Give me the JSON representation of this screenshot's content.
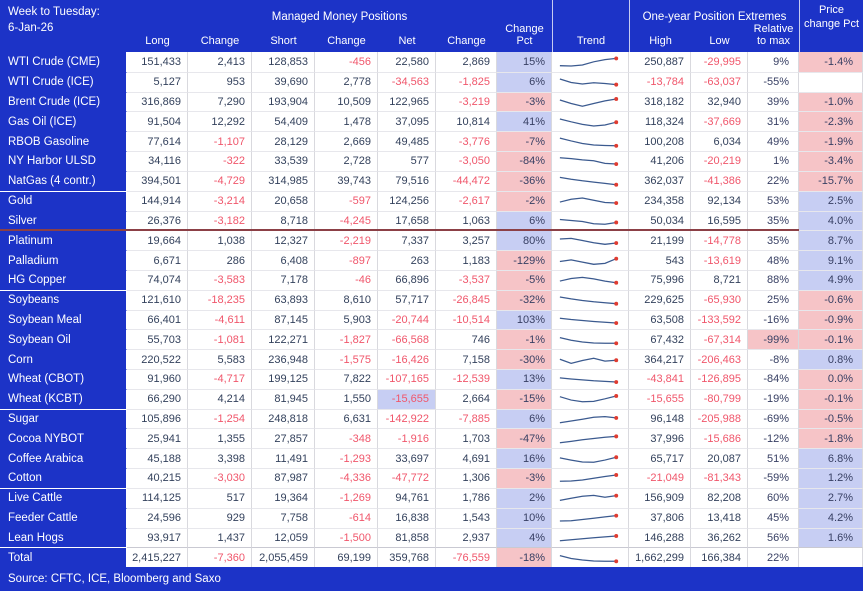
{
  "header": {
    "week_label": "Week to Tuesday:",
    "date": "6-Jan-26",
    "group1": "Managed Money Positions",
    "group2": "One-year Position Extremes",
    "price_col": "Price change Pct",
    "columns": [
      "Long",
      "Change",
      "Short",
      "Change",
      "Net",
      "Change",
      "Change Pct",
      "Trend",
      "High",
      "Low",
      "Relative to max"
    ]
  },
  "footer": {
    "source": "Source: CFTC, ICE, Bloomberg and Saxo"
  },
  "colors": {
    "accent_blue": "#1c33c7",
    "positive_text": "#33415c",
    "negative_text": "#f0566b",
    "highlight_blue": "#c7cef3",
    "highlight_pink": "#f6c4c7",
    "separator_maroon": "#8c4046",
    "sparkline_line": "#3b5a8f",
    "sparkline_dot": "#e03c31"
  },
  "chart_data": {
    "type": "table",
    "title": "Managed Money Positions - Week to Tuesday 6-Jan-26",
    "columns": [
      "Commodity",
      "Long",
      "Long Change",
      "Short",
      "Short Change",
      "Net",
      "Net Change",
      "Change Pct",
      "Trend",
      "High",
      "Low",
      "Relative to max",
      "Price change Pct"
    ],
    "rows": [
      {
        "label": "WTI Crude (CME)",
        "cells": [
          "151,433",
          "2,413",
          "128,853",
          "-456",
          "22,580",
          "2,869"
        ],
        "chg_pct": "15%",
        "trend": [
          0.25,
          0.22,
          0.3,
          0.55,
          0.72,
          0.82
        ],
        "high": "250,887",
        "low": "-29,995",
        "rel": "9%",
        "price": "-1.4%"
      },
      {
        "label": "WTI Crude (ICE)",
        "cells": [
          "5,127",
          "953",
          "39,690",
          "2,778",
          "-34,563",
          "-1,825"
        ],
        "chg_pct": "6%",
        "trend": [
          0.78,
          0.5,
          0.38,
          0.48,
          0.42,
          0.33
        ],
        "high": "-13,784",
        "low": "-63,037",
        "rel": "-55%",
        "price": ""
      },
      {
        "label": "Brent Crude (ICE)",
        "cells": [
          "316,869",
          "7,290",
          "193,904",
          "10,509",
          "122,965",
          "-3,219"
        ],
        "chg_pct": "-3%",
        "trend": [
          0.7,
          0.42,
          0.2,
          0.42,
          0.62,
          0.78
        ],
        "high": "318,182",
        "low": "32,940",
        "rel": "39%",
        "price": "-1.0%"
      },
      {
        "label": "Gas Oil (ICE)",
        "cells": [
          "91,504",
          "12,292",
          "54,409",
          "1,478",
          "37,095",
          "10,814"
        ],
        "chg_pct": "41%",
        "trend": [
          0.78,
          0.55,
          0.35,
          0.22,
          0.3,
          0.52
        ],
        "high": "118,324",
        "low": "-37,669",
        "rel": "31%",
        "price": "-2.3%"
      },
      {
        "label": "RBOB Gasoline",
        "cells": [
          "77,614",
          "-1,107",
          "28,129",
          "2,669",
          "49,485",
          "-3,776"
        ],
        "chg_pct": "-7%",
        "trend": [
          0.85,
          0.62,
          0.42,
          0.3,
          0.26,
          0.24
        ],
        "high": "100,208",
        "low": "6,034",
        "rel": "49%",
        "price": "-1.9%"
      },
      {
        "label": "NY Harbor ULSD",
        "cells": [
          "34,116",
          "-322",
          "33,539",
          "2,728",
          "577",
          "-3,050"
        ],
        "chg_pct": "-84%",
        "trend": [
          0.8,
          0.72,
          0.62,
          0.55,
          0.35,
          0.3
        ],
        "high": "41,206",
        "low": "-20,219",
        "rel": "1%",
        "price": "-3.4%"
      },
      {
        "label": "NatGas (4 contr.)",
        "cells": [
          "394,501",
          "-4,729",
          "314,985",
          "39,743",
          "79,516",
          "-44,472"
        ],
        "chg_pct": "-36%",
        "trend": [
          0.82,
          0.68,
          0.55,
          0.45,
          0.35,
          0.25
        ],
        "high": "362,037",
        "low": "-41,386",
        "rel": "22%",
        "price": "-15.7%"
      },
      {
        "label": "Gold",
        "group_start": true,
        "cells": [
          "144,914",
          "-3,214",
          "20,658",
          "-597",
          "124,256",
          "-2,617"
        ],
        "chg_pct": "-2%",
        "trend": [
          0.45,
          0.68,
          0.78,
          0.6,
          0.42,
          0.38
        ],
        "high": "234,358",
        "low": "92,134",
        "rel": "53%",
        "price": "2.5%"
      },
      {
        "label": "Silver",
        "cells": [
          "26,376",
          "-3,182",
          "8,718",
          "-4,245",
          "17,658",
          "1,063"
        ],
        "chg_pct": "6%",
        "trend": [
          0.65,
          0.58,
          0.5,
          0.32,
          0.28,
          0.42
        ],
        "high": "50,034",
        "low": "16,595",
        "rel": "35%",
        "price": "4.0%"
      },
      {
        "label": "Platinum",
        "maroon_top": true,
        "cells": [
          "19,664",
          "1,038",
          "12,327",
          "-2,219",
          "7,337",
          "3,257"
        ],
        "chg_pct": "80%",
        "trend": [
          0.7,
          0.75,
          0.58,
          0.4,
          0.28,
          0.38
        ],
        "high": "21,199",
        "low": "-14,778",
        "rel": "35%",
        "price": "8.7%"
      },
      {
        "label": "Palladium",
        "cells": [
          "6,671",
          "286",
          "6,408",
          "-897",
          "263",
          "1,183"
        ],
        "chg_pct": "-129%",
        "trend": [
          0.5,
          0.62,
          0.45,
          0.28,
          0.35,
          0.72
        ],
        "high": "543",
        "low": "-13,619",
        "rel": "48%",
        "price": "9.1%"
      },
      {
        "label": "HG Copper",
        "cells": [
          "74,074",
          "-3,583",
          "7,178",
          "-46",
          "66,896",
          "-3,537"
        ],
        "chg_pct": "-5%",
        "trend": [
          0.45,
          0.65,
          0.75,
          0.62,
          0.45,
          0.32
        ],
        "high": "75,996",
        "low": "8,721",
        "rel": "88%",
        "price": "4.9%"
      },
      {
        "label": "Soybeans",
        "group_start": true,
        "cells": [
          "121,610",
          "-18,235",
          "63,893",
          "8,610",
          "57,717",
          "-26,845"
        ],
        "chg_pct": "-32%",
        "trend": [
          0.78,
          0.62,
          0.5,
          0.4,
          0.32,
          0.25
        ],
        "high": "229,625",
        "low": "-65,930",
        "rel": "25%",
        "price": "-0.6%"
      },
      {
        "label": "Soybean Meal",
        "cells": [
          "66,401",
          "-4,611",
          "87,145",
          "5,903",
          "-20,744",
          "-10,514"
        ],
        "chg_pct": "103%",
        "trend": [
          0.68,
          0.58,
          0.5,
          0.42,
          0.36,
          0.3
        ],
        "high": "63,508",
        "low": "-133,592",
        "rel": "-16%",
        "price": "-0.9%"
      },
      {
        "label": "Soybean Oil",
        "cells": [
          "55,703",
          "-1,081",
          "122,271",
          "-1,827",
          "-66,568",
          "746"
        ],
        "chg_pct": "-1%",
        "trend": [
          0.72,
          0.52,
          0.38,
          0.3,
          0.28,
          0.28
        ],
        "high": "67,432",
        "low": "-67,314",
        "rel": "-99%",
        "rel_bg": "pink",
        "price": "-0.1%"
      },
      {
        "label": "Corn",
        "cells": [
          "220,522",
          "5,583",
          "236,948",
          "-1,575",
          "-16,426",
          "7,158"
        ],
        "chg_pct": "-30%",
        "trend": [
          0.6,
          0.28,
          0.5,
          0.68,
          0.45,
          0.52
        ],
        "high": "364,217",
        "low": "-206,463",
        "rel": "-8%",
        "price": "0.8%"
      },
      {
        "label": "Wheat (CBOT)",
        "cells": [
          "91,960",
          "-4,717",
          "199,125",
          "7,822",
          "-107,165",
          "-12,539"
        ],
        "chg_pct": "13%",
        "trend": [
          0.62,
          0.54,
          0.47,
          0.4,
          0.35,
          0.3
        ],
        "high": "-43,841",
        "low": "-126,895",
        "rel": "-84%",
        "price": "0.0%",
        "price_bg": "pink"
      },
      {
        "label": "Wheat (KCBT)",
        "cells": [
          "66,290",
          "4,214",
          "81,945",
          "1,550",
          "-15,655",
          "2,664"
        ],
        "net_bg": "blue",
        "chg_pct": "-15%",
        "trend": [
          0.72,
          0.45,
          0.32,
          0.35,
          0.55,
          0.78
        ],
        "high": "-15,655",
        "low": "-80,799",
        "rel": "-19%",
        "price": "-0.1%"
      },
      {
        "label": "Sugar",
        "group_start": true,
        "cells": [
          "105,896",
          "-1,254",
          "248,818",
          "6,631",
          "-142,922",
          "-7,885"
        ],
        "chg_pct": "6%",
        "trend": [
          0.25,
          0.38,
          0.52,
          0.68,
          0.72,
          0.62
        ],
        "high": "96,148",
        "low": "-205,988",
        "rel": "-69%",
        "price": "-0.5%"
      },
      {
        "label": "Cocoa NYBOT",
        "cells": [
          "25,941",
          "1,355",
          "27,857",
          "-348",
          "-1,916",
          "1,703"
        ],
        "chg_pct": "-47%",
        "trend": [
          0.25,
          0.35,
          0.48,
          0.58,
          0.68,
          0.75
        ],
        "high": "37,996",
        "low": "-15,686",
        "rel": "-12%",
        "price": "-1.8%"
      },
      {
        "label": "Coffee Arabica",
        "cells": [
          "45,188",
          "3,398",
          "11,491",
          "-1,293",
          "33,697",
          "4,691"
        ],
        "chg_pct": "16%",
        "trend": [
          0.62,
          0.45,
          0.3,
          0.28,
          0.45,
          0.68
        ],
        "high": "65,717",
        "low": "20,087",
        "rel": "51%",
        "price": "6.8%"
      },
      {
        "label": "Cotton",
        "cells": [
          "40,215",
          "-3,030",
          "87,987",
          "-4,336",
          "-47,772",
          "1,306"
        ],
        "chg_pct": "-3%",
        "trend": [
          0.28,
          0.3,
          0.38,
          0.52,
          0.65,
          0.78
        ],
        "high": "-21,049",
        "low": "-81,343",
        "rel": "-59%",
        "price": "1.2%"
      },
      {
        "label": "Live Cattle",
        "group_start": true,
        "cells": [
          "114,125",
          "517",
          "19,364",
          "-1,269",
          "94,761",
          "1,786"
        ],
        "chg_pct": "2%",
        "trend": [
          0.35,
          0.52,
          0.68,
          0.75,
          0.6,
          0.72
        ],
        "high": "156,909",
        "low": "82,208",
        "rel": "60%",
        "price": "2.7%"
      },
      {
        "label": "Feeder Cattle",
        "cells": [
          "24,596",
          "929",
          "7,758",
          "-614",
          "16,838",
          "1,543"
        ],
        "chg_pct": "10%",
        "trend": [
          0.3,
          0.32,
          0.42,
          0.52,
          0.62,
          0.72
        ],
        "high": "37,806",
        "low": "13,418",
        "rel": "45%",
        "price": "4.2%"
      },
      {
        "label": "Lean Hogs",
        "cells": [
          "93,917",
          "1,437",
          "12,059",
          "-1,500",
          "81,858",
          "2,937"
        ],
        "chg_pct": "4%",
        "trend": [
          0.32,
          0.4,
          0.48,
          0.56,
          0.63,
          0.7
        ],
        "high": "146,288",
        "low": "36,262",
        "rel": "56%",
        "price": "1.6%"
      },
      {
        "label": "Total",
        "group_start": true,
        "total": true,
        "cells": [
          "2,415,227",
          "-7,360",
          "2,055,459",
          "69,199",
          "359,768",
          "-76,559"
        ],
        "chg_pct": "-18%",
        "trend": [
          0.72,
          0.5,
          0.38,
          0.3,
          0.28,
          0.28
        ],
        "high": "1,662,299",
        "low": "166,384",
        "rel": "22%",
        "price": ""
      }
    ]
  }
}
